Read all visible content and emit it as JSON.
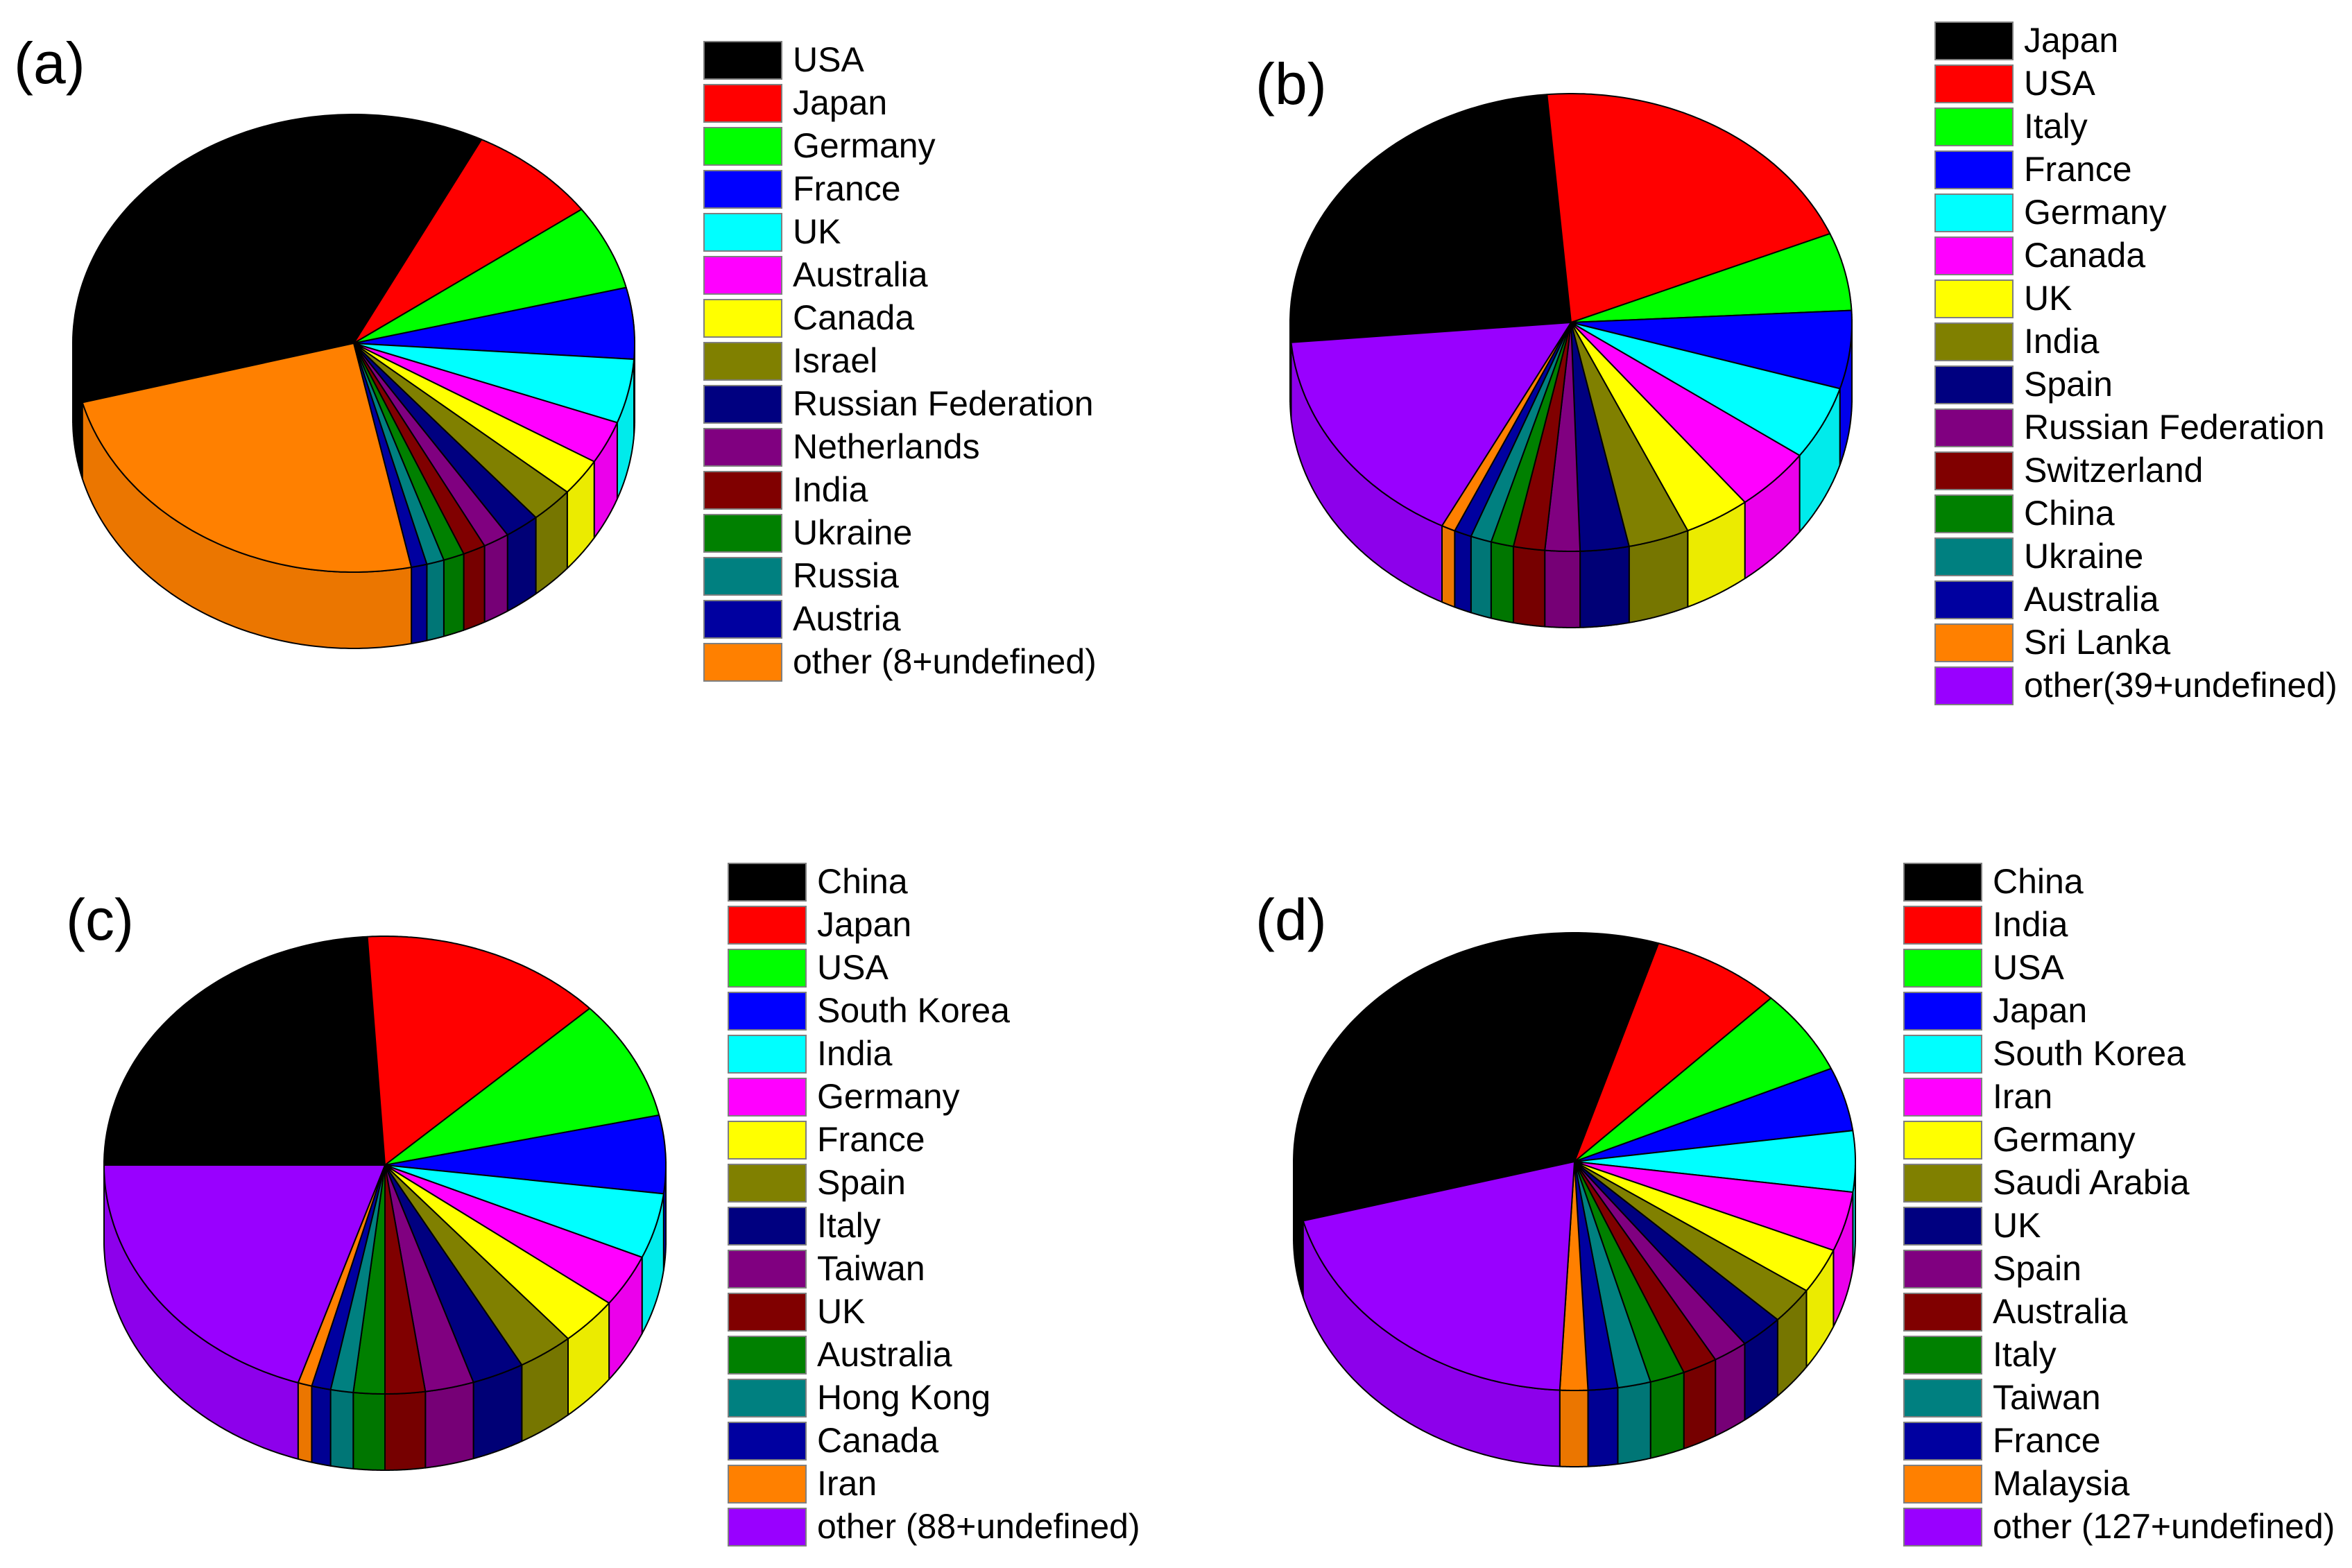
{
  "chart_data": [
    {
      "type": "pie",
      "panel": "(a)",
      "categories": [
        "USA",
        "Japan",
        "Germany",
        "France",
        "UK",
        "Australia",
        "Canada",
        "Israel",
        "Russian Federation",
        "Netherlands",
        "India",
        "Ukraine",
        "Russia",
        "Austria",
        "other (8+undefined)"
      ],
      "values": [
        36.5,
        7.5,
        6,
        5,
        4.5,
        3,
        2.6,
        2.5,
        2,
        1.5,
        1.3,
        1.2,
        1,
        0.9,
        24
      ],
      "colors": [
        "#000000",
        "#ff0000",
        "#00ff00",
        "#0000ff",
        "#00ffff",
        "#ff00ff",
        "#ffff00",
        "#808000",
        "#000080",
        "#800080",
        "#800000",
        "#008000",
        "#008080",
        "#0000a0",
        "#ff8000"
      ]
    },
    {
      "type": "pie",
      "panel": "(b)",
      "categories": [
        "Japan",
        "USA",
        "Italy",
        "France",
        "Germany",
        "Canada",
        "UK",
        "India",
        "Spain",
        "Russian Federation",
        "Switzerland",
        "China",
        "Ukraine",
        "Australia",
        "Sri Lanka",
        "other(39+undefined)"
      ],
      "values": [
        25,
        20,
        5.5,
        5.5,
        5.2,
        4.5,
        3.8,
        3.5,
        2.8,
        2,
        1.8,
        1.3,
        1.2,
        1,
        0.8,
        16
      ],
      "colors": [
        "#000000",
        "#ff0000",
        "#00ff00",
        "#0000ff",
        "#00ffff",
        "#ff00ff",
        "#ffff00",
        "#808000",
        "#000080",
        "#800080",
        "#800000",
        "#008000",
        "#008080",
        "#0000a0",
        "#ff8000",
        "#9900ff"
      ]
    },
    {
      "type": "pie",
      "panel": "(c)",
      "categories": [
        "China",
        "Japan",
        "USA",
        "South Korea",
        "India",
        "Germany",
        "France",
        "Spain",
        "Italy",
        "Taiwan",
        "UK",
        "Australia",
        "Hong Kong",
        "Canada",
        "Iran",
        "other (88+undefined)"
      ],
      "values": [
        24,
        14,
        8.5,
        5.5,
        4.6,
        3.7,
        3.4,
        3.2,
        3,
        2.8,
        2.3,
        1.8,
        1.3,
        1.1,
        0.8,
        20
      ],
      "colors": [
        "#000000",
        "#ff0000",
        "#00ff00",
        "#0000ff",
        "#00ffff",
        "#ff00ff",
        "#ffff00",
        "#808000",
        "#000080",
        "#800080",
        "#800000",
        "#008000",
        "#008080",
        "#0000a0",
        "#ff8000",
        "#9900ff"
      ]
    },
    {
      "type": "pie",
      "panel": "(d)",
      "categories": [
        "China",
        "India",
        "USA",
        "Japan",
        "South Korea",
        "Iran",
        "Germany",
        "Saudi Arabia",
        "UK",
        "Spain",
        "Australia",
        "Italy",
        "Taiwan",
        "France",
        "Malaysia",
        "other (127+undefined)"
      ],
      "values": [
        34,
        7.5,
        6,
        4.5,
        4.3,
        4.2,
        3.2,
        2.6,
        2.5,
        2,
        2,
        2,
        1.9,
        1.7,
        1.6,
        20
      ],
      "colors": [
        "#000000",
        "#ff0000",
        "#00ff00",
        "#0000ff",
        "#00ffff",
        "#ff00ff",
        "#ffff00",
        "#808000",
        "#000080",
        "#800080",
        "#800000",
        "#008000",
        "#008080",
        "#0000a0",
        "#ff8000",
        "#9900ff"
      ]
    }
  ]
}
